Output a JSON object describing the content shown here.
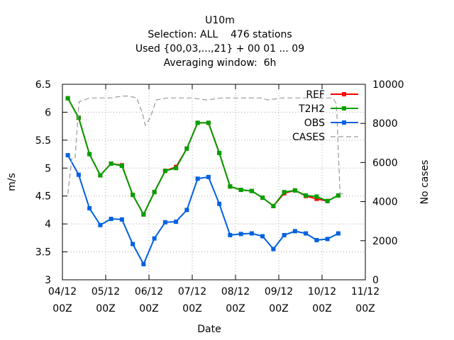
{
  "chart_data": {
    "type": "line",
    "title_lines": [
      "U10m",
      "Selection: ALL    476 stations",
      "Used {00,03,...,21} + 00 01 ... 09",
      "Averaging window:  6h"
    ],
    "xlabel": "Date",
    "ylabel": "m/s",
    "y2label": "No cases",
    "ylim": [
      3,
      6.5
    ],
    "y2lim": [
      0,
      10000
    ],
    "xlim": [
      0,
      42
    ],
    "x_ticks": [
      {
        "x": 0,
        "l1": "04/12",
        "l2": "00Z"
      },
      {
        "x": 6,
        "l1": "05/12",
        "l2": "00Z"
      },
      {
        "x": 12,
        "l1": "06/12",
        "l2": "00Z"
      },
      {
        "x": 18,
        "l1": "07/12",
        "l2": "00Z"
      },
      {
        "x": 24,
        "l1": "08/12",
        "l2": "00Z"
      },
      {
        "x": 30,
        "l1": "09/12",
        "l2": "00Z"
      },
      {
        "x": 36,
        "l1": "10/12",
        "l2": "00Z"
      },
      {
        "x": 42,
        "l1": "11/12",
        "l2": "00Z"
      }
    ],
    "y_ticks": [
      "3",
      "3.5",
      "4",
      "4.5",
      "5",
      "5.5",
      "6",
      "6.5"
    ],
    "y2_ticks": [
      "0",
      "2000",
      "4000",
      "6000",
      "8000",
      "10000"
    ],
    "grid": true,
    "legend_position": "top-right",
    "x": [
      0.75,
      2.25,
      3.75,
      5.25,
      6.75,
      8.25,
      9.75,
      11.25,
      12.75,
      14.25,
      15.75,
      17.25,
      18.75,
      20.25,
      21.75,
      23.25,
      24.75,
      26.25,
      27.75,
      29.25,
      30.75,
      32.25,
      33.75,
      35.25,
      36.75,
      38.25
    ],
    "series": [
      {
        "name": "REF",
        "color": "#ff0000",
        "axis": "y1",
        "marker": "dot",
        "values": [
          6.25,
          5.9,
          5.25,
          4.87,
          5.08,
          5.05,
          4.52,
          4.17,
          4.57,
          4.95,
          5.02,
          5.35,
          5.81,
          5.81,
          5.27,
          4.67,
          4.61,
          4.59,
          4.47,
          4.32,
          4.55,
          4.6,
          4.5,
          4.45,
          4.41,
          4.51
        ]
      },
      {
        "name": "T2H2",
        "color": "#00a000",
        "axis": "y1",
        "marker": "dot",
        "values": [
          6.25,
          5.9,
          5.25,
          4.87,
          5.08,
          5.04,
          4.52,
          4.17,
          4.57,
          4.95,
          5.0,
          5.35,
          5.81,
          5.81,
          5.27,
          4.67,
          4.61,
          4.59,
          4.47,
          4.32,
          4.57,
          4.6,
          4.51,
          4.49,
          4.41,
          4.51
        ]
      },
      {
        "name": "OBS",
        "color": "#0060e0",
        "axis": "y1",
        "marker": "dot",
        "values": [
          5.23,
          4.88,
          4.28,
          3.98,
          4.09,
          4.08,
          3.64,
          3.28,
          3.74,
          4.03,
          4.04,
          4.25,
          4.81,
          4.84,
          4.36,
          3.8,
          3.82,
          3.83,
          3.78,
          3.55,
          3.8,
          3.87,
          3.83,
          3.71,
          3.73,
          3.83
        ]
      },
      {
        "name": "CASES",
        "color": "#999999",
        "axis": "y2",
        "marker": "none",
        "dash": true,
        "x": [
          0.75,
          1.3,
          1.75,
          2.3,
          3.0,
          3.75,
          5.0,
          6.75,
          8.25,
          9.25,
          10.3,
          11.1,
          11.5,
          12.2,
          13.0,
          14.5,
          16.0,
          18.0,
          20.0,
          22.0,
          24.0,
          26.5,
          27.5,
          28.5,
          30.5,
          32.5,
          34.5,
          36.0,
          37.5,
          38.0,
          38.5,
          39.0
        ],
        "values": [
          4400,
          6200,
          6200,
          9100,
          9200,
          9300,
          9300,
          9300,
          9400,
          9400,
          9300,
          8500,
          7900,
          8300,
          9200,
          9300,
          9300,
          9300,
          9200,
          9300,
          9300,
          9300,
          9300,
          9200,
          9300,
          9300,
          9300,
          9300,
          9300,
          9000,
          4400,
          4400
        ]
      }
    ]
  }
}
